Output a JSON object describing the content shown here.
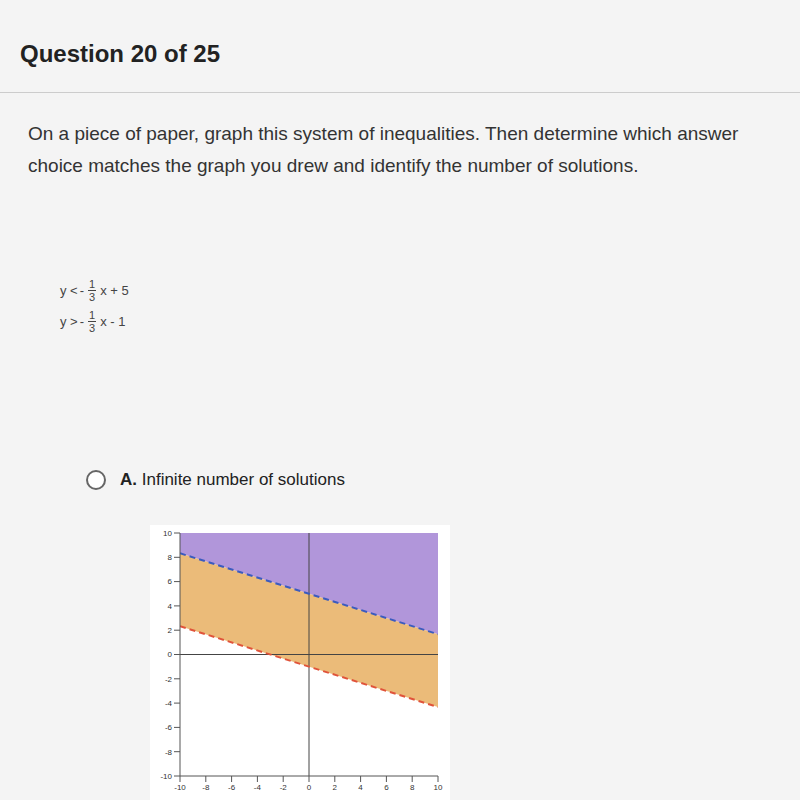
{
  "header": {
    "title": "Question 20 of 25"
  },
  "question": {
    "text": "On a piece of paper, graph this system of inequalities. Then determine which answer choice matches the graph you drew and identify the number of solutions.",
    "inequalities": [
      {
        "lhs": "y <",
        "sign": "-",
        "num": "1",
        "den": "3",
        "rest": "x + 5"
      },
      {
        "lhs": "y >",
        "sign": "-",
        "num": "1",
        "den": "3",
        "rest": "x - 1"
      }
    ]
  },
  "option": {
    "letter": "A.",
    "text": "Infinite number of solutions"
  },
  "chart_data": {
    "type": "line",
    "x": [
      -10,
      10
    ],
    "series": [
      {
        "color": "#3b5bbf",
        "line_style": "dashed",
        "values": [
          8.33,
          1.67
        ]
      },
      {
        "color": "#e0533a",
        "line_style": "dashed",
        "values": [
          2.33,
          -4.33
        ]
      }
    ],
    "colors": [
      "#a98bd6",
      "#e9b46a"
    ],
    "xlim": [
      -10,
      10
    ],
    "ylim": [
      -10,
      10
    ],
    "xticks": [
      -10,
      -8,
      -6,
      -4,
      -2,
      0,
      2,
      4,
      6,
      8,
      10
    ],
    "yticks": [
      -10,
      -8,
      -6,
      -4,
      -2,
      0,
      2,
      4,
      6,
      8,
      10
    ],
    "grid": false
  }
}
